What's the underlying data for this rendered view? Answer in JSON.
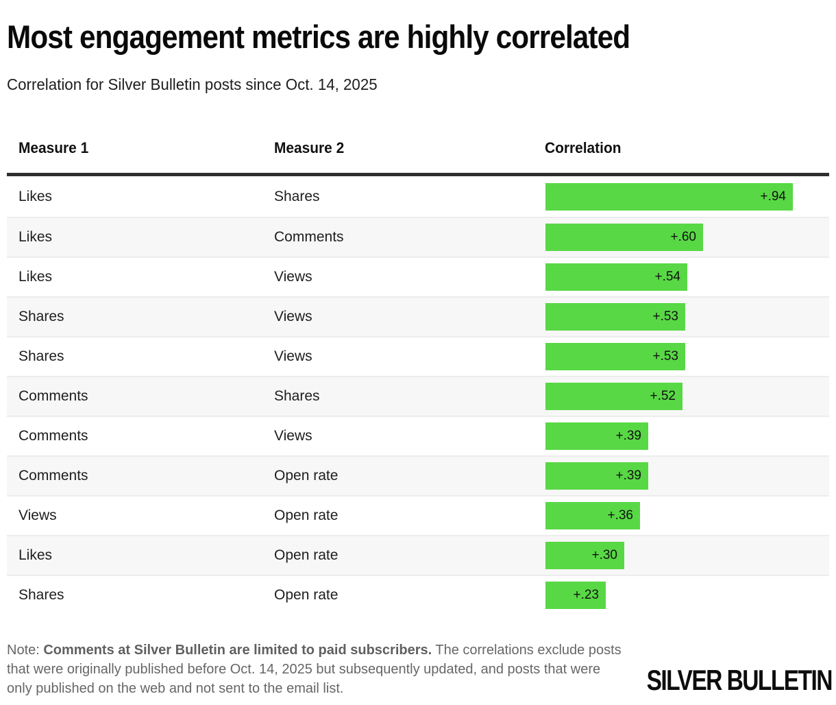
{
  "title": "Most engagement metrics are highly correlated",
  "subtitle": "Correlation for Silver Bulletin posts since Oct. 14, 2025",
  "table": {
    "headers": [
      "Measure 1",
      "Measure 2",
      "Correlation"
    ]
  },
  "chart_data": {
    "type": "bar",
    "orientation": "horizontal",
    "columns": [
      "Measure 1",
      "Measure 2",
      "Correlation"
    ],
    "value_range": [
      0,
      1
    ],
    "bar_color": "#58d845",
    "rows": [
      {
        "measure1": "Likes",
        "measure2": "Shares",
        "correlation": 0.94,
        "label": "+.94"
      },
      {
        "measure1": "Likes",
        "measure2": "Comments",
        "correlation": 0.6,
        "label": "+.60"
      },
      {
        "measure1": "Likes",
        "measure2": "Views",
        "correlation": 0.54,
        "label": "+.54"
      },
      {
        "measure1": "Shares",
        "measure2": "Views",
        "correlation": 0.53,
        "label": "+.53"
      },
      {
        "measure1": "Shares",
        "measure2": "Views",
        "correlation": 0.53,
        "label": "+.53"
      },
      {
        "measure1": "Comments",
        "measure2": "Shares",
        "correlation": 0.52,
        "label": "+.52"
      },
      {
        "measure1": "Comments",
        "measure2": "Views",
        "correlation": 0.39,
        "label": "+.39"
      },
      {
        "measure1": "Comments",
        "measure2": "Open rate",
        "correlation": 0.39,
        "label": "+.39"
      },
      {
        "measure1": "Views",
        "measure2": "Open rate",
        "correlation": 0.36,
        "label": "+.36"
      },
      {
        "measure1": "Likes",
        "measure2": "Open rate",
        "correlation": 0.3,
        "label": "+.30"
      },
      {
        "measure1": "Shares",
        "measure2": "Open rate",
        "correlation": 0.23,
        "label": "+.23"
      }
    ]
  },
  "note": {
    "prefix": "Note: ",
    "bold": "Comments at Silver Bulletin are limited to paid subscribers.",
    "rest": " The correlations exclude posts that were originally published before Oct. 14, 2025 but subsequently updated, and posts that were only published on the web and not sent to the email list."
  },
  "logo": {
    "text": "SILVER BULLETIN"
  },
  "colors": {
    "bar_green": "#58d845",
    "row_alt_bg": "#f7f7f7",
    "row_separator": "#ececec",
    "header_rule": "#2e2e2e",
    "note_text": "#666666"
  }
}
